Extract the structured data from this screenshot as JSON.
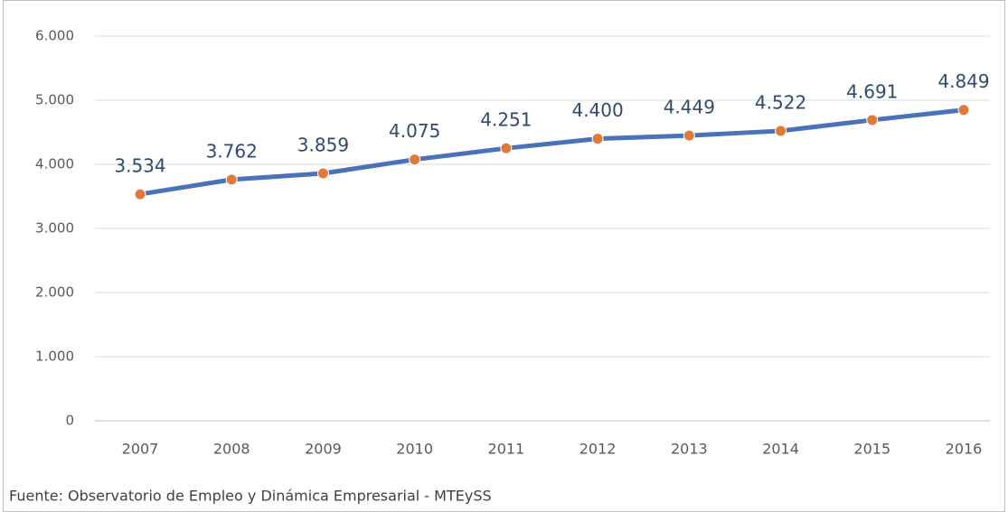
{
  "chart_data": {
    "type": "line",
    "categories": [
      "2007",
      "2008",
      "2009",
      "2010",
      "2011",
      "2012",
      "2013",
      "2014",
      "2015",
      "2016"
    ],
    "series": [
      {
        "color": "#4a72b8",
        "marker_color": "#e07a3a",
        "values": [
          3534,
          3762,
          3859,
          4075,
          4251,
          4400,
          4449,
          4522,
          4691,
          4849
        ],
        "value_labels": [
          "3.534",
          "3.762",
          "3.859",
          "4.075",
          "4.251",
          "4.400",
          "4.449",
          "4.522",
          "4.691",
          "4.849"
        ]
      }
    ],
    "ylim": [
      0,
      6000
    ],
    "yticks": [
      0,
      {
        "value": 1000,
        "label": "1.000"
      },
      {
        "value": 2000,
        "label": "2.000"
      },
      {
        "value": 3000,
        "label": "3.000"
      },
      {
        "value": 4000,
        "label": "4.000"
      },
      {
        "value": 5000,
        "label": "5.000"
      },
      {
        "value": 6000,
        "label": "6.000"
      }
    ],
    "grid": true,
    "source": "Fuente: Observatorio de Empleo y Dinámica Empresarial - MTEySS"
  }
}
